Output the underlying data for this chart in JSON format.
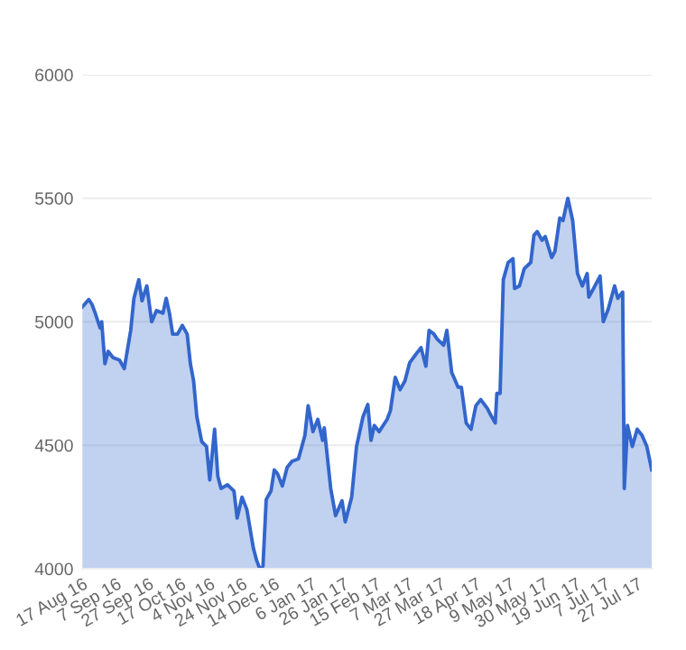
{
  "chart_data": {
    "type": "area",
    "x": [
      "2016-08-17",
      "2016-08-21",
      "2016-08-23",
      "2016-08-25",
      "2016-08-28",
      "2016-08-29",
      "2016-08-31",
      "2016-09-02",
      "2016-09-05",
      "2016-09-09",
      "2016-09-12",
      "2016-09-16",
      "2016-09-18",
      "2016-09-21",
      "2016-09-23",
      "2016-09-26",
      "2016-09-29",
      "2016-10-02",
      "2016-10-06",
      "2016-10-08",
      "2016-10-10",
      "2016-10-12",
      "2016-10-15",
      "2016-10-18",
      "2016-10-21",
      "2016-10-23",
      "2016-10-25",
      "2016-10-27",
      "2016-10-30",
      "2016-11-02",
      "2016-11-04",
      "2016-11-07",
      "2016-11-09",
      "2016-11-11",
      "2016-11-15",
      "2016-11-19",
      "2016-11-21",
      "2016-11-24",
      "2016-11-27",
      "2016-12-01",
      "2016-12-03",
      "2016-12-05",
      "2016-12-07",
      "2016-12-09",
      "2016-12-12",
      "2016-12-14",
      "2016-12-16",
      "2016-12-19",
      "2016-12-22",
      "2016-12-25",
      "2016-12-29",
      "2017-01-02",
      "2017-01-04",
      "2017-01-07",
      "2017-01-10",
      "2017-01-13",
      "2017-01-14",
      "2017-01-18",
      "2017-01-21",
      "2017-01-25",
      "2017-01-27",
      "2017-01-31",
      "2017-02-03",
      "2017-02-07",
      "2017-02-10",
      "2017-02-12",
      "2017-02-14",
      "2017-02-17",
      "2017-02-22",
      "2017-02-24",
      "2017-02-27",
      "2017-03-02",
      "2017-03-05",
      "2017-03-08",
      "2017-03-12",
      "2017-03-15",
      "2017-03-18",
      "2017-03-20",
      "2017-03-23",
      "2017-03-25",
      "2017-03-29",
      "2017-03-31",
      "2017-04-03",
      "2017-04-07",
      "2017-04-09",
      "2017-04-12",
      "2017-04-15",
      "2017-04-18",
      "2017-04-21",
      "2017-04-25",
      "2017-04-27",
      "2017-04-30",
      "2017-05-01",
      "2017-05-03",
      "2017-05-05",
      "2017-05-08",
      "2017-05-11",
      "2017-05-12",
      "2017-05-15",
      "2017-05-18",
      "2017-05-22",
      "2017-05-24",
      "2017-05-26",
      "2017-05-29",
      "2017-05-31",
      "2017-06-04",
      "2017-06-06",
      "2017-06-09",
      "2017-06-11",
      "2017-06-14",
      "2017-06-17",
      "2017-06-20",
      "2017-06-23",
      "2017-06-26",
      "2017-06-27",
      "2017-06-30",
      "2017-07-04",
      "2017-07-06",
      "2017-07-09",
      "2017-07-13",
      "2017-07-15",
      "2017-07-18",
      "2017-07-19",
      "2017-07-21",
      "2017-07-24",
      "2017-07-27",
      "2017-07-30",
      "2017-08-02",
      "2017-08-05"
    ],
    "series": [
      {
        "color": "#3366cc",
        "values": [
          5060,
          5090,
          5070,
          5035,
          4975,
          5000,
          4830,
          4880,
          4855,
          4845,
          4810,
          4965,
          5095,
          5170,
          5085,
          5145,
          5000,
          5045,
          5035,
          5095,
          5035,
          4950,
          4950,
          4985,
          4950,
          4830,
          4760,
          4615,
          4515,
          4495,
          4360,
          4565,
          4375,
          4325,
          4340,
          4315,
          4205,
          4290,
          4240,
          4085,
          4035,
          4000,
          4010,
          4280,
          4315,
          4400,
          4385,
          4335,
          4410,
          4435,
          4445,
          4540,
          4660,
          4555,
          4605,
          4520,
          4570,
          4325,
          4215,
          4275,
          4190,
          4290,
          4495,
          4615,
          4665,
          4520,
          4580,
          4555,
          4605,
          4640,
          4775,
          4725,
          4760,
          4835,
          4870,
          4895,
          4820,
          4965,
          4950,
          4930,
          4905,
          4965,
          4795,
          4735,
          4735,
          4590,
          4565,
          4660,
          4685,
          4650,
          4625,
          4590,
          4710,
          4710,
          5170,
          5240,
          5255,
          5135,
          5145,
          5215,
          5240,
          5350,
          5365,
          5330,
          5345,
          5260,
          5285,
          5420,
          5410,
          5500,
          5410,
          5195,
          5145,
          5195,
          5100,
          5135,
          5185,
          5000,
          5050,
          5145,
          5095,
          5120,
          4325,
          4580,
          4495,
          4565,
          4540,
          4495,
          4400
        ]
      }
    ],
    "xlim": [
      "2016-08-17",
      "2017-08-05"
    ],
    "xticks": [
      {
        "value": "2016-08-17",
        "label": "17 Aug 16"
      },
      {
        "value": "2016-09-07",
        "label": "7 Sep 16"
      },
      {
        "value": "2016-09-27",
        "label": "27 Sep 16"
      },
      {
        "value": "2016-10-17",
        "label": "17 Oct 16"
      },
      {
        "value": "2016-11-04",
        "label": "4 Nov 16"
      },
      {
        "value": "2016-11-24",
        "label": "24 Nov 16"
      },
      {
        "value": "2016-12-14",
        "label": "14 Dec 16"
      },
      {
        "value": "2017-01-06",
        "label": "6 Jan 17"
      },
      {
        "value": "2017-01-26",
        "label": "26 Jan 17"
      },
      {
        "value": "2017-02-15",
        "label": "15 Feb 17"
      },
      {
        "value": "2017-03-07",
        "label": "7 Mar 17"
      },
      {
        "value": "2017-03-27",
        "label": "27 Mar 17"
      },
      {
        "value": "2017-04-18",
        "label": "18 Apr 17"
      },
      {
        "value": "2017-05-09",
        "label": "9 May 17"
      },
      {
        "value": "2017-05-30",
        "label": "30 May 17"
      },
      {
        "value": "2017-06-19",
        "label": "19 Jun 17"
      },
      {
        "value": "2017-07-07",
        "label": "7 Jul 17"
      },
      {
        "value": "2017-07-27",
        "label": "27 Jul 17"
      }
    ],
    "ylim": [
      4000,
      6000
    ],
    "yticks": [
      4000,
      4500,
      5000,
      5500,
      6000
    ],
    "grid": "y"
  }
}
